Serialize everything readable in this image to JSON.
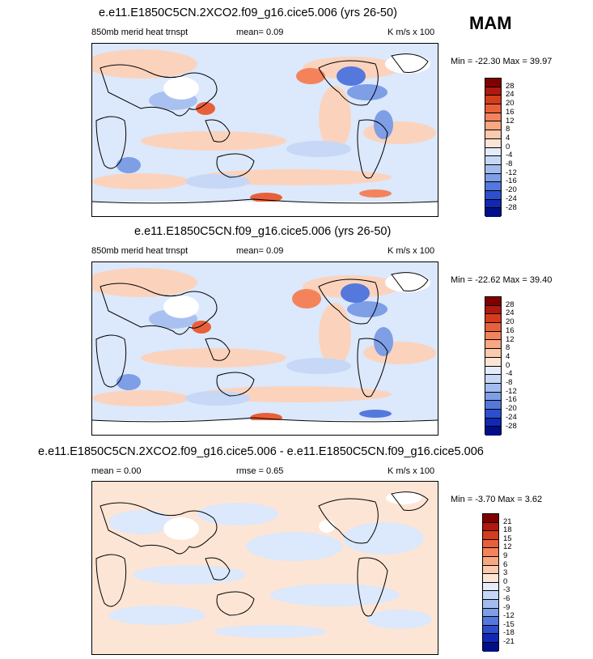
{
  "season": "MAM",
  "panels": [
    {
      "title": "e.e11.E1850C5CN.2XCO2.f09_g16.cice5.006 (yrs 26-50)",
      "left_label": "850mb merid heat trnspt",
      "mid_label": "mean=  0.09",
      "units": "K m/s x 100",
      "minmax": "Min = -22.30 Max =  39.97",
      "levels": [
        "28",
        "24",
        "20",
        "16",
        "12",
        "8",
        "4",
        "0",
        "-4",
        "-8",
        "-12",
        "-16",
        "-20",
        "-24",
        "-28"
      ],
      "colors": [
        "#7f0000",
        "#b2180e",
        "#d43c1c",
        "#e8603a",
        "#f4835c",
        "#f8a783",
        "#fbcaad",
        "#fde5d5",
        "#e4ecfc",
        "#c6d8f6",
        "#a3bcef",
        "#7e9ee6",
        "#5478dc",
        "#2d4fcf",
        "#1228b5",
        "#000f87"
      ]
    },
    {
      "title": "e.e11.E1850C5CN.f09_g16.cice5.006 (yrs 26-50)",
      "left_label": "850mb merid heat trnspt",
      "mid_label": "mean=  0.09",
      "units": "K m/s x 100",
      "minmax": "Min = -22.62 Max =  39.40",
      "levels": [
        "28",
        "24",
        "20",
        "16",
        "12",
        "8",
        "4",
        "0",
        "-4",
        "-8",
        "-12",
        "-16",
        "-20",
        "-24",
        "-28"
      ],
      "colors": [
        "#7f0000",
        "#b2180e",
        "#d43c1c",
        "#e8603a",
        "#f4835c",
        "#f8a783",
        "#fbcaad",
        "#fde5d5",
        "#e4ecfc",
        "#c6d8f6",
        "#a3bcef",
        "#7e9ee6",
        "#5478dc",
        "#2d4fcf",
        "#1228b5",
        "#000f87"
      ]
    },
    {
      "title": "e.e11.E1850C5CN.2XCO2.f09_g16.cice5.006 - e.e11.E1850C5CN.f09_g16.cice5.006",
      "left_label": "mean =  0.00",
      "mid_label": "rmse =  0.65",
      "units": "K m/s x 100",
      "minmax": "Min = -3.70 Max =  3.62",
      "levels": [
        "21",
        "18",
        "15",
        "12",
        "9",
        "6",
        "3",
        "0",
        "-3",
        "-6",
        "-9",
        "-12",
        "-15",
        "-18",
        "-21"
      ],
      "colors": [
        "#7f0000",
        "#b2180e",
        "#d43c1c",
        "#e8603a",
        "#f4835c",
        "#f8a783",
        "#fbcaad",
        "#fde5d5",
        "#e4ecfc",
        "#c6d8f6",
        "#a3bcef",
        "#7e9ee6",
        "#5478dc",
        "#2d4fcf",
        "#1228b5",
        "#000f87"
      ]
    }
  ],
  "chart_data": [
    {
      "type": "heatmap",
      "title": "e.e11.E1850C5CN.2XCO2.f09_g16.cice5.006 (yrs 26-50)",
      "variable": "850mb merid heat trnspt",
      "units": "K m/s x 100",
      "mean": 0.09,
      "min": -22.3,
      "max": 39.97,
      "contour_levels": [
        -28,
        -24,
        -20,
        -16,
        -12,
        -8,
        -4,
        0,
        4,
        8,
        12,
        16,
        20,
        24,
        28
      ]
    },
    {
      "type": "heatmap",
      "title": "e.e11.E1850C5CN.f09_g16.cice5.006 (yrs 26-50)",
      "variable": "850mb merid heat trnspt",
      "units": "K m/s x 100",
      "mean": 0.09,
      "min": -22.62,
      "max": 39.4,
      "contour_levels": [
        -28,
        -24,
        -20,
        -16,
        -12,
        -8,
        -4,
        0,
        4,
        8,
        12,
        16,
        20,
        24,
        28
      ]
    },
    {
      "type": "heatmap",
      "title": "e.e11.E1850C5CN.2XCO2.f09_g16.cice5.006 - e.e11.E1850C5CN.f09_g16.cice5.006",
      "units": "K m/s x 100",
      "mean": 0.0,
      "rmse": 0.65,
      "min": -3.7,
      "max": 3.62,
      "contour_levels": [
        -21,
        -18,
        -15,
        -12,
        -9,
        -6,
        -3,
        0,
        3,
        6,
        9,
        12,
        15,
        18,
        21
      ]
    }
  ]
}
